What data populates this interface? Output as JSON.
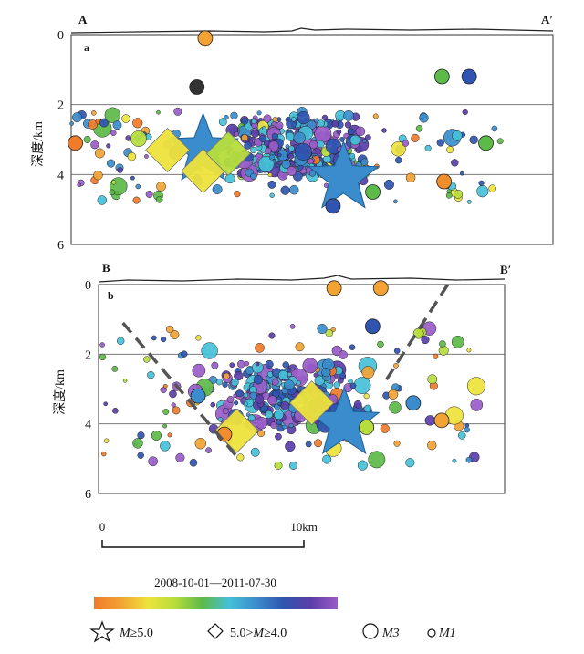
{
  "chart_data": [
    {
      "type": "scatter",
      "panel": "a",
      "section_start": "A",
      "section_end": "A′",
      "ylabel": "深度/km",
      "yticks": [
        "0",
        "2",
        "4",
        "6"
      ],
      "ylim": [
        0,
        6
      ],
      "xlim": [
        0,
        23
      ],
      "grid_depths": [
        2,
        4
      ],
      "events": [
        {
          "x": 6.3,
          "depth": 3.3,
          "mag": "M>=5.0",
          "color": "#3a8ccc"
        },
        {
          "x": 13.0,
          "depth": 4.1,
          "mag": "M>=5.0",
          "color": "#3a8ccc"
        },
        {
          "x": 4.6,
          "depth": 3.3,
          "mag": "5.0>M>=4.0",
          "color": "#ede33c"
        },
        {
          "x": 6.3,
          "depth": 3.9,
          "mag": "5.0>M>=4.0",
          "color": "#ede33c"
        },
        {
          "x": 7.5,
          "depth": 3.4,
          "mag": "5.0>M>=4.0",
          "color": "#b6dd3c"
        },
        {
          "x": 6.4,
          "depth": 0.1,
          "mag": "M3",
          "color": "#f3a333"
        },
        {
          "x": 6.0,
          "depth": 1.5,
          "mag": "M3",
          "color": "#333333"
        },
        {
          "x": 17.8,
          "depth": 4.2,
          "mag": "M3",
          "color": "#f28d2c"
        },
        {
          "x": 19.0,
          "depth": 1.2,
          "mag": "M3",
          "color": "#2f55b0"
        },
        {
          "x": 17.7,
          "depth": 1.2,
          "mag": "M3",
          "color": "#5cba48"
        },
        {
          "x": 0.2,
          "depth": 3.1,
          "mag": "M3",
          "color": "#f07b2a"
        },
        {
          "x": 12.5,
          "depth": 4.9,
          "mag": "M3",
          "color": "#2f55b0"
        },
        {
          "x": 14.4,
          "depth": 4.5,
          "mag": "M3",
          "color": "#5cba48"
        },
        {
          "x": 19.8,
          "depth": 3.1,
          "mag": "M3",
          "color": "#5cba48"
        }
      ],
      "background_cloud": {
        "x_range": [
          0,
          20.5
        ],
        "depth_range": [
          2.2,
          4.8
        ]
      }
    },
    {
      "type": "scatter",
      "panel": "b",
      "section_start": "B",
      "section_end": "B′",
      "ylabel": "深度/km",
      "yticks": [
        "0",
        "2",
        "4",
        "6"
      ],
      "ylim": [
        0,
        6
      ],
      "xlim": [
        0,
        20
      ],
      "grid_depths": [
        2,
        4
      ],
      "events": [
        {
          "x": 12.1,
          "depth": 4.0,
          "mag": "M>=5.0",
          "color": "#3a8ccc"
        },
        {
          "x": 10.5,
          "depth": 3.4,
          "mag": "5.0>M>=4.0",
          "color": "#ede33c"
        },
        {
          "x": 6.8,
          "depth": 4.2,
          "mag": "5.0>M>=4.0",
          "color": "#ede33c"
        },
        {
          "x": 15.5,
          "depth": 3.4,
          "mag": "M3",
          "color": "#3a8ccc"
        },
        {
          "x": 13.2,
          "depth": 4.1,
          "mag": "M3",
          "color": "#b6dd3c"
        },
        {
          "x": 4.9,
          "depth": 3.2,
          "mag": "M3",
          "color": "#3a8ccc"
        },
        {
          "x": 6.2,
          "depth": 4.3,
          "mag": "M3",
          "color": "#f28d2c"
        },
        {
          "x": 11.6,
          "depth": 0.1,
          "mag": "M3",
          "color": "#f3a333"
        },
        {
          "x": 13.9,
          "depth": 0.1,
          "mag": "M3",
          "color": "#f3a333"
        },
        {
          "x": 13.5,
          "depth": 1.2,
          "mag": "M3",
          "color": "#2f55b0"
        },
        {
          "x": 16.9,
          "depth": 3.9,
          "mag": "M3",
          "color": "#f3a333"
        }
      ],
      "fault_lines": [
        {
          "points": [
            [
              1.2,
              1.1
            ],
            [
              6.9,
              5.0
            ]
          ]
        },
        {
          "points": [
            [
              17.2,
              0
            ],
            [
              14.1,
              2.8
            ]
          ]
        }
      ],
      "background_cloud": {
        "x_range": [
          0,
          19
        ],
        "depth_range": [
          1.2,
          5.2
        ]
      }
    }
  ],
  "scale_bar": {
    "start_label": "0",
    "end_label": "10km"
  },
  "colorbar": {
    "label": "2008-10-01—2011-07-30",
    "colors": [
      "#f07b2a",
      "#f3a333",
      "#ede33c",
      "#b6dd3c",
      "#5cba48",
      "#45c0d8",
      "#3a8ccc",
      "#2f55b0",
      "#5a3ea8",
      "#9a5cc8"
    ]
  },
  "legend": {
    "items": [
      {
        "symbol": "star",
        "label_var": "M",
        "label_rest": "≥5.0"
      },
      {
        "symbol": "diamond",
        "label_pre": "5.0>",
        "label_var": "M",
        "label_rest": "≥4.0"
      },
      {
        "symbol": "circle-large",
        "label_var": "M3",
        "label_rest": ""
      },
      {
        "symbol": "circle-small",
        "label_var": "M1",
        "label_rest": ""
      }
    ]
  }
}
